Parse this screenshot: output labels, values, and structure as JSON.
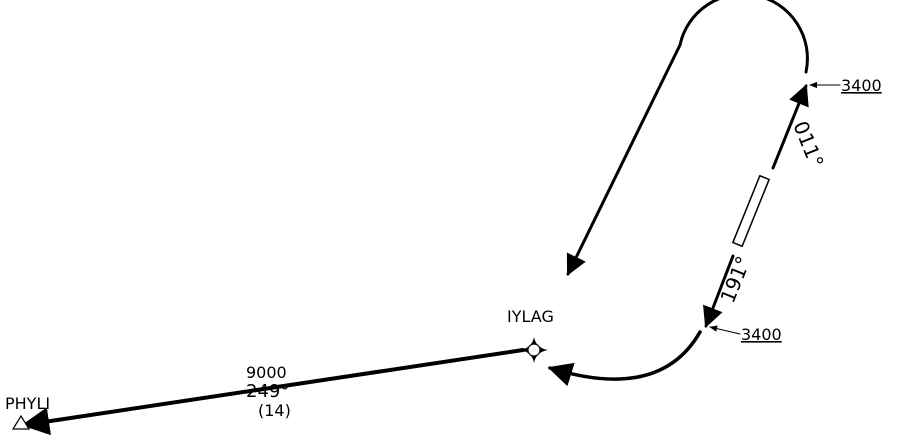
{
  "fixes": {
    "iylag": {
      "name": "IYLAG"
    },
    "phyli": {
      "name": "PHYLI"
    }
  },
  "segments": {
    "inbound_leg": {
      "altitude": "9000",
      "course": "249°",
      "distance": "(14)"
    }
  },
  "holding": {
    "outbound_course": "011°",
    "inbound_course": "191°",
    "altitude_upper": "3400",
    "altitude_lower": "3400"
  },
  "colors": {
    "ink": "#000000",
    "background": "#ffffff"
  }
}
